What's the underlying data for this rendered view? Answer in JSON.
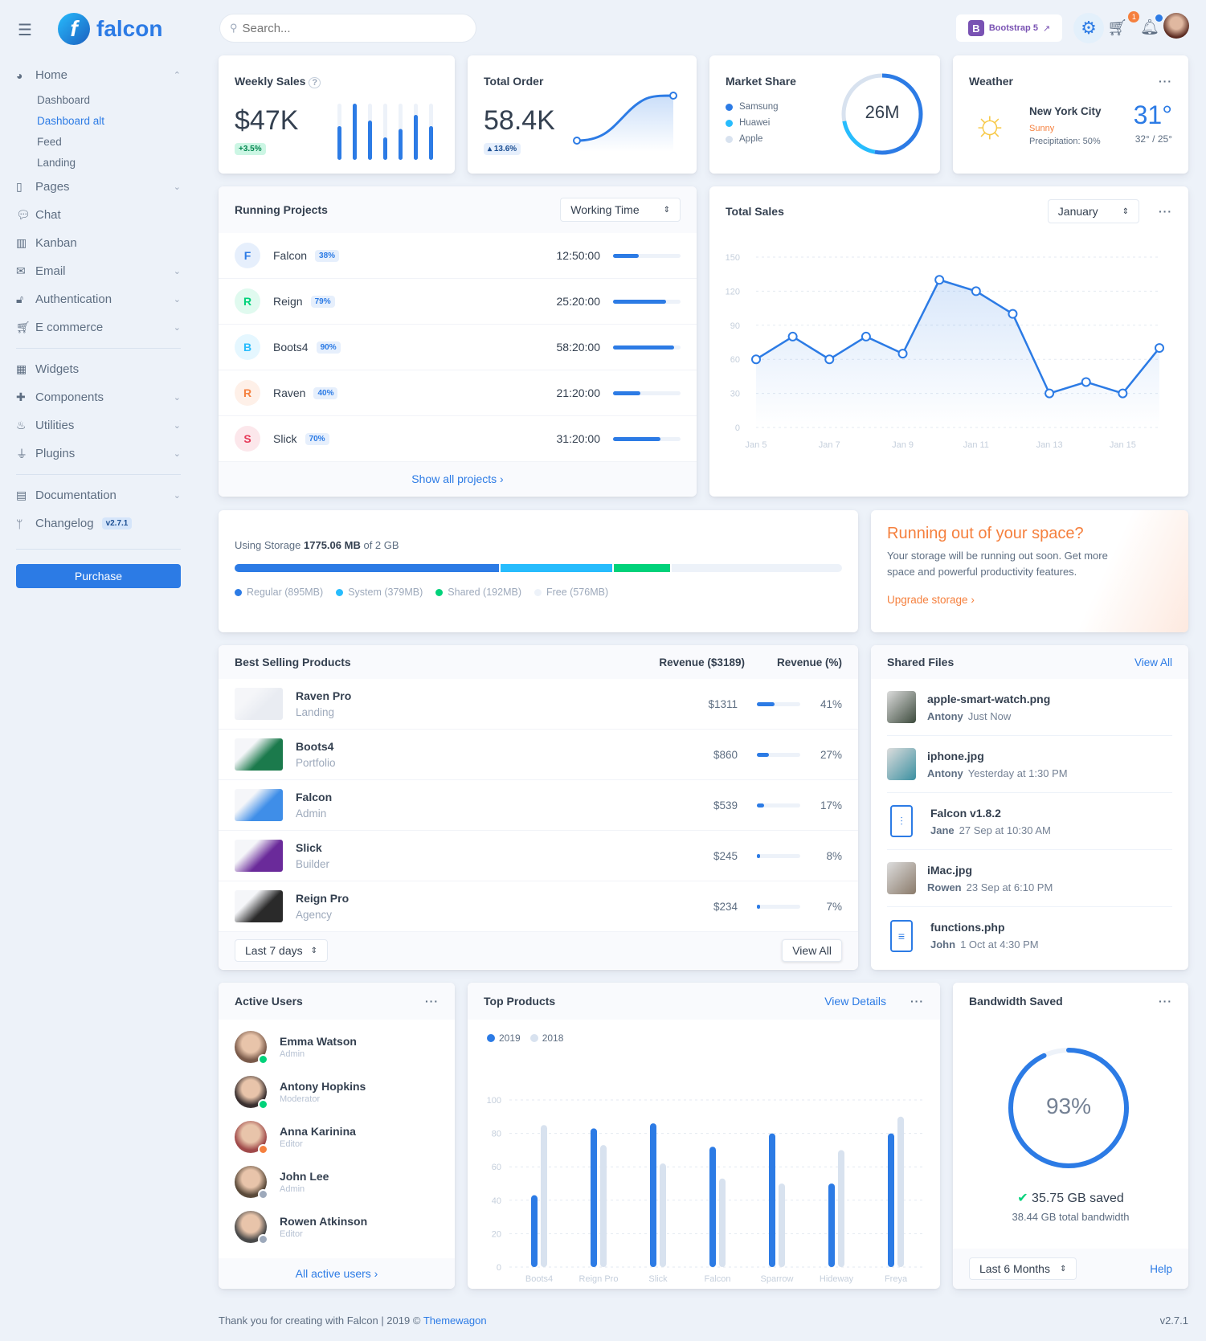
{
  "brand": {
    "name": "falcon"
  },
  "search": {
    "placeholder": "Search..."
  },
  "topbar": {
    "bootstrap_label": "Bootstrap 5",
    "cart_count": "1"
  },
  "sidebar": {
    "home": "Home",
    "sub": [
      "Dashboard",
      "Dashboard alt",
      "Feed",
      "Landing"
    ],
    "items1": [
      {
        "label": "Pages",
        "icon": "pages-icon",
        "chev": true
      },
      {
        "label": "Chat",
        "icon": "chat-icon"
      },
      {
        "label": "Kanban",
        "icon": "kanban-icon"
      },
      {
        "label": "Email",
        "icon": "email-icon",
        "chev": true
      },
      {
        "label": "Authentication",
        "icon": "lock-icon",
        "chev": true
      },
      {
        "label": "E commerce",
        "icon": "cart-icon",
        "chev": true
      }
    ],
    "items2": [
      {
        "label": "Widgets",
        "icon": "widgets-icon"
      },
      {
        "label": "Components",
        "icon": "puzzle-icon",
        "chev": true
      },
      {
        "label": "Utilities",
        "icon": "fire-icon",
        "chev": true
      },
      {
        "label": "Plugins",
        "icon": "plug-icon",
        "chev": true
      }
    ],
    "documentation": "Documentation",
    "changelog": "Changelog",
    "version_badge": "v2.7.1",
    "purchase": "Purchase"
  },
  "weekly_sales": {
    "title": "Weekly Sales",
    "value": "$47K",
    "change": "+3.5%",
    "bars": [
      60,
      100,
      70,
      40,
      55,
      80,
      60
    ]
  },
  "total_order": {
    "title": "Total Order",
    "value": "58.4K",
    "change": "13.6%"
  },
  "market_share": {
    "title": "Market Share",
    "center": "26M",
    "legend": [
      {
        "label": "Samsung",
        "color": "#2c7be5",
        "value": 53
      },
      {
        "label": "Huawei",
        "color": "#27bcfd",
        "value": 19
      },
      {
        "label": "Apple",
        "color": "#d8e2ef",
        "value": 28
      }
    ]
  },
  "weather": {
    "title": "Weather",
    "city": "New York City",
    "condition": "Sunny",
    "precipitation": "Precipitation: 50%",
    "temp": "31°",
    "range": "32° / 25°"
  },
  "running_projects": {
    "title": "Running Projects",
    "select": "Working Time",
    "footer": "Show all projects ›",
    "rows": [
      {
        "letter": "F",
        "name": "Falcon",
        "pct": "38%",
        "progress": 38,
        "time": "12:50:00",
        "color": "#2c7be5",
        "bg": "#e6effc"
      },
      {
        "letter": "R",
        "name": "Reign",
        "pct": "79%",
        "progress": 79,
        "time": "25:20:00",
        "color": "#00d27a",
        "bg": "#e0faef"
      },
      {
        "letter": "B",
        "name": "Boots4",
        "pct": "90%",
        "progress": 90,
        "time": "58:20:00",
        "color": "#27bcfd",
        "bg": "#e5f7ff"
      },
      {
        "letter": "R",
        "name": "Raven",
        "pct": "40%",
        "progress": 40,
        "time": "21:20:00",
        "color": "#f5803e",
        "bg": "#fef0e8"
      },
      {
        "letter": "S",
        "name": "Slick",
        "pct": "70%",
        "progress": 70,
        "time": "31:20:00",
        "color": "#e63757",
        "bg": "#fce7eb"
      }
    ]
  },
  "chart_data": [
    {
      "type": "line",
      "title": "Total Sales",
      "select": "January",
      "x": [
        "Jan 5",
        "Jan 6",
        "Jan 7",
        "Jan 8",
        "Jan 9",
        "Jan 10",
        "Jan 11",
        "Jan 12",
        "Jan 13",
        "Jan 14",
        "Jan 15",
        "Jan 16"
      ],
      "x_tick_labels": [
        "Jan 5",
        "Jan 7",
        "Jan 9",
        "Jan 11",
        "Jan 13",
        "Jan 15"
      ],
      "values": [
        60,
        80,
        60,
        80,
        65,
        130,
        120,
        100,
        30,
        40,
        30,
        70
      ],
      "yticks": [
        0,
        30,
        60,
        90,
        120,
        150
      ],
      "ylim": [
        0,
        150
      ],
      "grid": true,
      "color": "#2c7be5"
    },
    {
      "type": "bar",
      "title": "Top Products",
      "link": "View Details",
      "categories": [
        "Boots4",
        "Reign Pro",
        "Slick",
        "Falcon",
        "Sparrow",
        "Hideway",
        "Freya"
      ],
      "series": [
        {
          "name": "2019",
          "color": "#2c7be5",
          "values": [
            43,
            83,
            86,
            72,
            80,
            50,
            80
          ]
        },
        {
          "name": "2018",
          "color": "#d8e2ef",
          "values": [
            85,
            73,
            62,
            53,
            50,
            70,
            90
          ]
        }
      ],
      "yticks": [
        0,
        20,
        40,
        60,
        80,
        100
      ],
      "ylim": [
        0,
        100
      ],
      "grid": true,
      "legend": "top-left"
    }
  ],
  "storage": {
    "label": "Using Storage",
    "used": "1775.06 MB",
    "of": "of 2 GB",
    "segments": [
      {
        "label": "Regular (895MB)",
        "mb": 895,
        "color": "#2c7be5"
      },
      {
        "label": "System (379MB)",
        "mb": 379,
        "color": "#27bcfd"
      },
      {
        "label": "Shared (192MB)",
        "mb": 192,
        "color": "#00d27a"
      },
      {
        "label": "Free (576MB)",
        "mb": 576,
        "color": "#edf2f9"
      }
    ]
  },
  "promo": {
    "title": "Running out of your space?",
    "text": "Your storage will be running out soon. Get more space and powerful productivity features.",
    "link": "Upgrade storage ›"
  },
  "best_selling": {
    "title": "Best Selling Products",
    "col1": "Revenue ($3189)",
    "col2": "Revenue (%)",
    "select": "Last 7 days",
    "view_all": "View All",
    "rows": [
      {
        "name": "Raven Pro",
        "sub": "Landing",
        "revenue": "$1311",
        "pct": "41%",
        "progress": 41,
        "thumb": "#e9ecf2"
      },
      {
        "name": "Boots4",
        "sub": "Portfolio",
        "revenue": "$860",
        "pct": "27%",
        "progress": 27,
        "thumb": "#1b7a4c"
      },
      {
        "name": "Falcon",
        "sub": "Admin",
        "revenue": "$539",
        "pct": "17%",
        "progress": 17,
        "thumb": "#3f8ee8"
      },
      {
        "name": "Slick",
        "sub": "Builder",
        "revenue": "$245",
        "pct": "8%",
        "progress": 8,
        "thumb": "#6a2a9a"
      },
      {
        "name": "Reign Pro",
        "sub": "Agency",
        "revenue": "$234",
        "pct": "7%",
        "progress": 7,
        "thumb": "#2a2a2a"
      }
    ]
  },
  "shared_files": {
    "title": "Shared Files",
    "view_all": "View All",
    "rows": [
      {
        "name": "apple-smart-watch.png",
        "user": "Antony",
        "time": "Just Now",
        "kind": "image",
        "color": "#3c4a3c"
      },
      {
        "name": "iphone.jpg",
        "user": "Antony",
        "time": "Yesterday at 1:30 PM",
        "kind": "image",
        "color": "#3a8fa0"
      },
      {
        "name": "Falcon v1.8.2",
        "user": "Jane",
        "time": "27 Sep at 10:30 AM",
        "kind": "zip"
      },
      {
        "name": "iMac.jpg",
        "user": "Rowen",
        "time": "23 Sep at 6:10 PM",
        "kind": "image",
        "color": "#8a7a6a"
      },
      {
        "name": "functions.php",
        "user": "John",
        "time": "1 Oct at 4:30 PM",
        "kind": "doc"
      }
    ]
  },
  "active_users": {
    "title": "Active Users",
    "footer": "All active users ›",
    "rows": [
      {
        "name": "Emma Watson",
        "role": "Admin",
        "status": "#00d27a",
        "color": "#7a5a4a"
      },
      {
        "name": "Antony Hopkins",
        "role": "Moderator",
        "status": "#00d27a",
        "color": "#3a3030"
      },
      {
        "name": "Anna Karinina",
        "role": "Editor",
        "status": "#f5803e",
        "color": "#a04a4a"
      },
      {
        "name": "John Lee",
        "role": "Admin",
        "status": "#9da9bb",
        "color": "#5a4a3a"
      },
      {
        "name": "Rowen Atkinson",
        "role": "Editor",
        "status": "#9da9bb",
        "color": "#4a4a4a"
      }
    ]
  },
  "bandwidth": {
    "title": "Bandwidth Saved",
    "percent": 93,
    "percent_label": "93%",
    "saved": "35.75 GB saved",
    "total": "38.44 GB total bandwidth",
    "select": "Last 6 Months",
    "help": "Help"
  },
  "footer": {
    "text": "Thank you for creating with Falcon | 2019 ©",
    "link": "Themewagon",
    "version": "v2.7.1"
  }
}
